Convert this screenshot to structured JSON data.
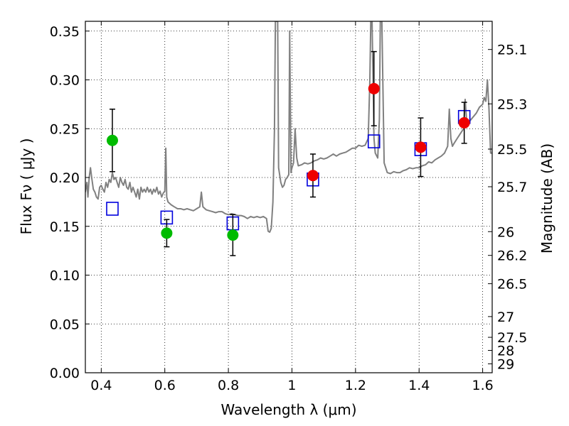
{
  "chart_data": {
    "type": "scatter",
    "title": "",
    "xlabel": "Wavelength  λ (μm)",
    "ylabel": "Flux  Fν  ( μJy )",
    "y2label": "Magnitude (AB)",
    "xlim": [
      0.35,
      1.63
    ],
    "ylim": [
      0,
      0.36
    ],
    "grid": true,
    "x_ticks": [
      {
        "value": 0.4,
        "label": "0.4"
      },
      {
        "value": 0.6,
        "label": "0.6"
      },
      {
        "value": 0.8,
        "label": "0.8"
      },
      {
        "value": 1.0,
        "label": "1"
      },
      {
        "value": 1.2,
        "label": "1.2"
      },
      {
        "value": 1.4,
        "label": "1.4"
      },
      {
        "value": 1.6,
        "label": "1.6"
      }
    ],
    "y_ticks": [
      {
        "value": 0.0,
        "label": "0.00"
      },
      {
        "value": 0.05,
        "label": "0.05"
      },
      {
        "value": 0.1,
        "label": "0.10"
      },
      {
        "value": 0.15,
        "label": "0.15"
      },
      {
        "value": 0.2,
        "label": "0.20"
      },
      {
        "value": 0.25,
        "label": "0.25"
      },
      {
        "value": 0.3,
        "label": "0.30"
      },
      {
        "value": 0.35,
        "label": "0.35"
      }
    ],
    "mag_ticks": [
      {
        "value": 25.1,
        "label": "25.1"
      },
      {
        "value": 25.3,
        "label": "25.3"
      },
      {
        "value": 25.5,
        "label": "25.5"
      },
      {
        "value": 25.7,
        "label": "25.7"
      },
      {
        "value": 26.0,
        "label": "26"
      },
      {
        "value": 26.2,
        "label": "26.2"
      },
      {
        "value": 26.5,
        "label": "26.5"
      },
      {
        "value": 27.0,
        "label": "27"
      },
      {
        "value": 27.5,
        "label": "27.5"
      },
      {
        "value": 28.0,
        "label": "28"
      },
      {
        "value": 29.0,
        "label": "29"
      }
    ],
    "spectrum": {
      "color": "#808080",
      "points": [
        [
          0.35,
          0.185
        ],
        [
          0.355,
          0.195
        ],
        [
          0.358,
          0.18
        ],
        [
          0.362,
          0.2
        ],
        [
          0.366,
          0.21
        ],
        [
          0.37,
          0.2
        ],
        [
          0.375,
          0.188
        ],
        [
          0.38,
          0.185
        ],
        [
          0.385,
          0.18
        ],
        [
          0.39,
          0.178
        ],
        [
          0.395,
          0.19
        ],
        [
          0.4,
          0.192
        ],
        [
          0.405,
          0.188
        ],
        [
          0.41,
          0.185
        ],
        [
          0.415,
          0.195
        ],
        [
          0.42,
          0.19
        ],
        [
          0.425,
          0.198
        ],
        [
          0.43,
          0.195
        ],
        [
          0.435,
          0.205
        ],
        [
          0.44,
          0.198
        ],
        [
          0.445,
          0.2
        ],
        [
          0.45,
          0.195
        ],
        [
          0.455,
          0.19
        ],
        [
          0.46,
          0.2
        ],
        [
          0.465,
          0.195
        ],
        [
          0.47,
          0.192
        ],
        [
          0.475,
          0.198
        ],
        [
          0.48,
          0.19
        ],
        [
          0.485,
          0.188
        ],
        [
          0.49,
          0.195
        ],
        [
          0.495,
          0.185
        ],
        [
          0.5,
          0.19
        ],
        [
          0.505,
          0.185
        ],
        [
          0.51,
          0.18
        ],
        [
          0.515,
          0.188
        ],
        [
          0.52,
          0.178
        ],
        [
          0.525,
          0.19
        ],
        [
          0.53,
          0.185
        ],
        [
          0.535,
          0.188
        ],
        [
          0.54,
          0.185
        ],
        [
          0.545,
          0.19
        ],
        [
          0.55,
          0.185
        ],
        [
          0.555,
          0.188
        ],
        [
          0.56,
          0.183
        ],
        [
          0.565,
          0.188
        ],
        [
          0.57,
          0.185
        ],
        [
          0.575,
          0.19
        ],
        [
          0.58,
          0.183
        ],
        [
          0.585,
          0.186
        ],
        [
          0.59,
          0.18
        ],
        [
          0.595,
          0.184
        ],
        [
          0.6,
          0.186
        ],
        [
          0.603,
          0.23
        ],
        [
          0.606,
          0.18
        ],
        [
          0.61,
          0.175
        ],
        [
          0.62,
          0.172
        ],
        [
          0.63,
          0.17
        ],
        [
          0.64,
          0.168
        ],
        [
          0.65,
          0.168
        ],
        [
          0.66,
          0.167
        ],
        [
          0.67,
          0.168
        ],
        [
          0.68,
          0.167
        ],
        [
          0.69,
          0.166
        ],
        [
          0.7,
          0.168
        ],
        [
          0.71,
          0.17
        ],
        [
          0.715,
          0.185
        ],
        [
          0.72,
          0.17
        ],
        [
          0.73,
          0.167
        ],
        [
          0.74,
          0.166
        ],
        [
          0.75,
          0.165
        ],
        [
          0.76,
          0.164
        ],
        [
          0.77,
          0.165
        ],
        [
          0.78,
          0.165
        ],
        [
          0.79,
          0.163
        ],
        [
          0.8,
          0.162
        ],
        [
          0.81,
          0.163
        ],
        [
          0.82,
          0.162
        ],
        [
          0.83,
          0.161
        ],
        [
          0.84,
          0.161
        ],
        [
          0.85,
          0.16
        ],
        [
          0.86,
          0.158
        ],
        [
          0.87,
          0.16
        ],
        [
          0.88,
          0.159
        ],
        [
          0.89,
          0.16
        ],
        [
          0.9,
          0.159
        ],
        [
          0.91,
          0.16
        ],
        [
          0.92,
          0.158
        ],
        [
          0.925,
          0.145
        ],
        [
          0.93,
          0.144
        ],
        [
          0.935,
          0.148
        ],
        [
          0.94,
          0.175
        ],
        [
          0.945,
          0.25
        ],
        [
          0.948,
          0.36
        ],
        [
          0.955,
          0.36
        ],
        [
          0.958,
          0.21
        ],
        [
          0.965,
          0.195
        ],
        [
          0.97,
          0.19
        ],
        [
          0.975,
          0.192
        ],
        [
          0.98,
          0.198
        ],
        [
          0.985,
          0.2
        ],
        [
          0.99,
          0.203
        ],
        [
          0.993,
          0.35
        ],
        [
          0.997,
          0.205
        ],
        [
          1.0,
          0.21
        ],
        [
          1.005,
          0.215
        ],
        [
          1.01,
          0.25
        ],
        [
          1.015,
          0.22
        ],
        [
          1.02,
          0.212
        ],
        [
          1.03,
          0.213
        ],
        [
          1.04,
          0.215
        ],
        [
          1.05,
          0.214
        ],
        [
          1.06,
          0.215
        ],
        [
          1.07,
          0.217
        ],
        [
          1.08,
          0.218
        ],
        [
          1.09,
          0.22
        ],
        [
          1.1,
          0.219
        ],
        [
          1.11,
          0.22
        ],
        [
          1.12,
          0.222
        ],
        [
          1.13,
          0.224
        ],
        [
          1.14,
          0.222
        ],
        [
          1.15,
          0.224
        ],
        [
          1.16,
          0.225
        ],
        [
          1.17,
          0.226
        ],
        [
          1.18,
          0.228
        ],
        [
          1.19,
          0.23
        ],
        [
          1.2,
          0.23
        ],
        [
          1.21,
          0.233
        ],
        [
          1.22,
          0.232
        ],
        [
          1.23,
          0.233
        ],
        [
          1.24,
          0.24
        ],
        [
          1.245,
          0.3
        ],
        [
          1.248,
          0.36
        ],
        [
          1.252,
          0.36
        ],
        [
          1.258,
          0.24
        ],
        [
          1.262,
          0.225
        ],
        [
          1.27,
          0.22
        ],
        [
          1.275,
          0.26
        ],
        [
          1.278,
          0.36
        ],
        [
          1.283,
          0.36
        ],
        [
          1.29,
          0.215
        ],
        [
          1.3,
          0.205
        ],
        [
          1.31,
          0.204
        ],
        [
          1.32,
          0.206
        ],
        [
          1.33,
          0.205
        ],
        [
          1.34,
          0.205
        ],
        [
          1.35,
          0.207
        ],
        [
          1.36,
          0.208
        ],
        [
          1.37,
          0.21
        ],
        [
          1.38,
          0.209
        ],
        [
          1.39,
          0.21
        ],
        [
          1.4,
          0.21
        ],
        [
          1.41,
          0.212
        ],
        [
          1.42,
          0.213
        ],
        [
          1.43,
          0.216
        ],
        [
          1.44,
          0.215
        ],
        [
          1.45,
          0.218
        ],
        [
          1.46,
          0.22
        ],
        [
          1.47,
          0.222
        ],
        [
          1.48,
          0.225
        ],
        [
          1.49,
          0.232
        ],
        [
          1.495,
          0.27
        ],
        [
          1.5,
          0.24
        ],
        [
          1.505,
          0.232
        ],
        [
          1.51,
          0.235
        ],
        [
          1.52,
          0.24
        ],
        [
          1.53,
          0.245
        ],
        [
          1.54,
          0.25
        ],
        [
          1.545,
          0.28
        ],
        [
          1.55,
          0.255
        ],
        [
          1.56,
          0.258
        ],
        [
          1.57,
          0.262
        ],
        [
          1.58,
          0.266
        ],
        [
          1.59,
          0.272
        ],
        [
          1.6,
          0.275
        ],
        [
          1.605,
          0.282
        ],
        [
          1.61,
          0.278
        ],
        [
          1.615,
          0.3
        ],
        [
          1.62,
          0.27
        ],
        [
          1.625,
          0.225
        ],
        [
          1.63,
          0.225
        ]
      ]
    },
    "series": [
      {
        "marker": "circle",
        "color": "#00bb00",
        "points": [
          {
            "x": 0.435,
            "y": 0.238,
            "yerr": 0.032
          },
          {
            "x": 0.606,
            "y": 0.143,
            "yerr": 0.014
          },
          {
            "x": 0.814,
            "y": 0.141,
            "yerr": 0.021
          }
        ]
      },
      {
        "marker": "circle",
        "color": "#ee0000",
        "points": [
          {
            "x": 1.066,
            "y": 0.202,
            "yerr": 0.022
          },
          {
            "x": 1.258,
            "y": 0.291,
            "yerr": 0.038
          },
          {
            "x": 1.405,
            "y": 0.231,
            "yerr": 0.03
          },
          {
            "x": 1.542,
            "y": 0.256,
            "yerr": 0.021
          }
        ]
      },
      {
        "marker": "square-open",
        "color": "#0000dd",
        "points": [
          {
            "x": 0.435,
            "y": 0.168
          },
          {
            "x": 0.606,
            "y": 0.159
          },
          {
            "x": 0.814,
            "y": 0.153
          },
          {
            "x": 1.066,
            "y": 0.198
          },
          {
            "x": 1.258,
            "y": 0.237
          },
          {
            "x": 1.405,
            "y": 0.229
          },
          {
            "x": 1.542,
            "y": 0.262
          }
        ]
      }
    ]
  }
}
